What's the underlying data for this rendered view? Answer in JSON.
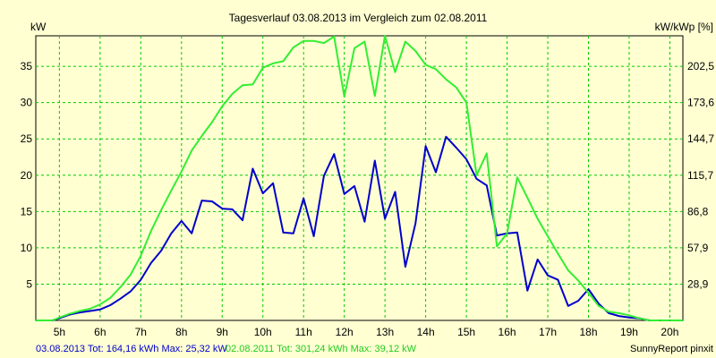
{
  "chart_data": {
    "type": "line",
    "title": "Tagesverlauf 03.08.2013 im Vergleich zum 02.08.2011",
    "ylabel_left": "kW",
    "ylabel_right": "kW/kWp [%]",
    "x_ticks": [
      "5h",
      "6h",
      "7h",
      "8h",
      "9h",
      "10h",
      "11h",
      "12h",
      "13h",
      "14h",
      "15h",
      "16h",
      "17h",
      "18h",
      "19h",
      "20h"
    ],
    "y_ticks_left": [
      "5",
      "10",
      "15",
      "20",
      "25",
      "30",
      "35"
    ],
    "y_ticks_right": [
      "28,9",
      "57,9",
      "86,8",
      "115,7",
      "144,7",
      "173,6",
      "202,5"
    ],
    "xlim": [
      4.42,
      20.32
    ],
    "ylim": [
      0,
      39.2
    ],
    "grid": true,
    "footer": {
      "series1_label": "03.08.2013 Tot: 164,16 kWh Max: 25,32 kW",
      "series2_label": "02.08.2011 Tot: 301,24 kWh Max: 39,12 kW",
      "credit": "SunnyReport pinxit"
    },
    "series": [
      {
        "name": "03.08.2013",
        "color": "#0000cc",
        "x": [
          4.42,
          4.83,
          5.0,
          5.25,
          5.5,
          5.75,
          6.0,
          6.25,
          6.5,
          6.75,
          7.0,
          7.25,
          7.5,
          7.75,
          8.0,
          8.25,
          8.5,
          8.75,
          9.0,
          9.25,
          9.5,
          9.75,
          10.0,
          10.25,
          10.5,
          10.75,
          11.0,
          11.25,
          11.5,
          11.75,
          12.0,
          12.25,
          12.5,
          12.75,
          13.0,
          13.25,
          13.5,
          13.75,
          14.0,
          14.25,
          14.5,
          14.75,
          15.0,
          15.25,
          15.5,
          15.75,
          16.0,
          16.25,
          16.5,
          16.75,
          17.0,
          17.25,
          17.5,
          17.75,
          18.0,
          18.25,
          18.5,
          18.75,
          19.0,
          19.25,
          19.5,
          19.75,
          20.0,
          20.32
        ],
        "y": [
          0,
          0,
          0.3,
          0.8,
          1.1,
          1.3,
          1.5,
          2.1,
          3.0,
          4.0,
          5.6,
          7.9,
          9.6,
          12.0,
          13.7,
          12.0,
          16.5,
          16.4,
          15.4,
          15.3,
          13.8,
          20.9,
          17.5,
          18.9,
          12.1,
          12.0,
          16.8,
          11.6,
          19.9,
          22.9,
          17.4,
          18.5,
          13.6,
          22.0,
          14.0,
          17.7,
          7.4,
          13.4,
          24.0,
          20.4,
          25.3,
          23.8,
          22.2,
          19.5,
          18.6,
          11.7,
          12.0,
          12.1,
          4.1,
          8.4,
          6.2,
          5.6,
          2.0,
          2.7,
          4.3,
          2.3,
          1.0,
          0.6,
          0.4,
          0.3,
          0,
          0,
          0,
          0
        ]
      },
      {
        "name": "02.08.2011",
        "color": "#33ee33",
        "x": [
          4.42,
          4.83,
          5.0,
          5.25,
          5.5,
          5.75,
          6.0,
          6.25,
          6.5,
          6.75,
          7.0,
          7.25,
          7.5,
          7.75,
          8.0,
          8.25,
          8.5,
          8.75,
          9.0,
          9.25,
          9.5,
          9.75,
          10.0,
          10.25,
          10.5,
          10.75,
          11.0,
          11.25,
          11.5,
          11.75,
          12.0,
          12.25,
          12.5,
          12.75,
          13.0,
          13.25,
          13.5,
          13.75,
          14.0,
          14.25,
          14.5,
          14.75,
          15.0,
          15.25,
          15.5,
          15.75,
          16.0,
          16.25,
          16.5,
          16.75,
          17.0,
          17.25,
          17.5,
          17.75,
          18.0,
          18.25,
          18.5,
          18.75,
          19.0,
          19.25,
          19.5,
          19.75,
          20.0,
          20.32
        ],
        "y": [
          0,
          0,
          0.4,
          0.9,
          1.3,
          1.6,
          2.2,
          3.1,
          4.6,
          6.3,
          8.9,
          12.3,
          15.2,
          17.9,
          20.5,
          23.4,
          25.4,
          27.3,
          29.5,
          31.2,
          32.4,
          32.5,
          34.8,
          35.4,
          35.7,
          37.6,
          38.5,
          38.5,
          38.2,
          39.1,
          30.8,
          37.5,
          38.4,
          30.9,
          39.2,
          34.2,
          38.4,
          37.1,
          35.2,
          34.6,
          33.2,
          32.1,
          30.0,
          20.0,
          23.0,
          10.2,
          12.0,
          19.7,
          16.9,
          14.0,
          11.6,
          9.2,
          6.9,
          5.5,
          3.8,
          2.0,
          1.2,
          1.0,
          0.7,
          0.3,
          0,
          0,
          0,
          0
        ]
      }
    ]
  }
}
